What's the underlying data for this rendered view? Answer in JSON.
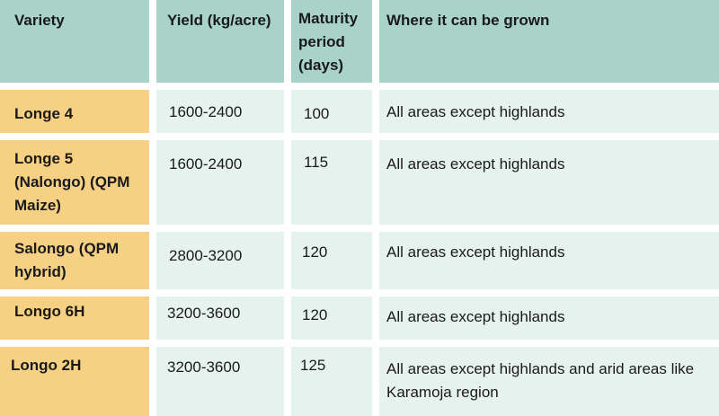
{
  "table": {
    "headers": {
      "variety": "Variety",
      "yield": "Yield (kg/acre)",
      "maturity": "Maturity period (days)",
      "where": "Where it can be grown"
    },
    "rows": [
      {
        "variety": "Longe 4",
        "yield": "1600-2400",
        "maturity": "100",
        "where": "All areas except highlands"
      },
      {
        "variety": "Longe 5 (Nalongo) (QPM Maize)",
        "yield": "1600-2400",
        "maturity": "115",
        "where": "All areas except highlands"
      },
      {
        "variety": "Salongo (QPM hybrid)",
        "yield": "2800-3200",
        "maturity": "120",
        "where": "All areas except highlands"
      },
      {
        "variety": "Longo 6H",
        "yield": "3200-3600",
        "maturity": "120",
        "where": "All areas except highlands"
      },
      {
        "variety": "Longo 2H",
        "yield": "3200-3600",
        "maturity": "125",
        "where": "All areas except highlands and arid areas like Karamoja region"
      }
    ]
  },
  "colors": {
    "header_bg": "#a9d3c9",
    "variety_bg": "#f7d183",
    "cell_bg": "#e6f2ee"
  }
}
